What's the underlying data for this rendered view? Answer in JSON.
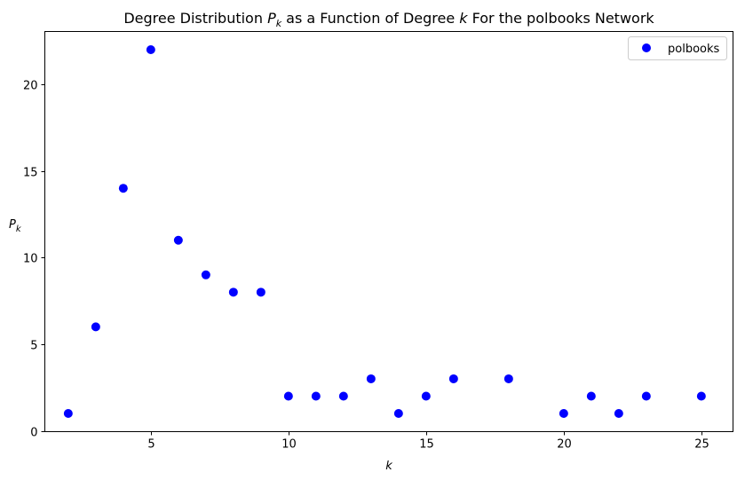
{
  "chart_data": {
    "type": "scatter",
    "title_main": "Degree Distribution ",
    "title_var": "P",
    "title_var_sub": "k",
    "title_mid": " as a Function of Degree ",
    "title_var2": "k",
    "title_end": " For the polbooks Network",
    "xlabel": "k",
    "ylabel": "P",
    "ylabel_sub": "k",
    "xlim": [
      1.15,
      26.15
    ],
    "ylim": [
      -0.05,
      23.05
    ],
    "xticks": [
      5,
      10,
      15,
      20,
      25
    ],
    "yticks": [
      0,
      5,
      10,
      15,
      20
    ],
    "legend_position": "top-right",
    "series": [
      {
        "name": "polbooks",
        "color": "#0000ff",
        "marker": "circle",
        "points": [
          {
            "x": 2,
            "y": 1
          },
          {
            "x": 3,
            "y": 6
          },
          {
            "x": 4,
            "y": 14
          },
          {
            "x": 5,
            "y": 22
          },
          {
            "x": 6,
            "y": 11
          },
          {
            "x": 7,
            "y": 9
          },
          {
            "x": 8,
            "y": 8
          },
          {
            "x": 9,
            "y": 8
          },
          {
            "x": 10,
            "y": 2
          },
          {
            "x": 11,
            "y": 2
          },
          {
            "x": 12,
            "y": 2
          },
          {
            "x": 13,
            "y": 3
          },
          {
            "x": 14,
            "y": 1
          },
          {
            "x": 15,
            "y": 2
          },
          {
            "x": 16,
            "y": 3
          },
          {
            "x": 18,
            "y": 3
          },
          {
            "x": 20,
            "y": 1
          },
          {
            "x": 21,
            "y": 2
          },
          {
            "x": 22,
            "y": 1
          },
          {
            "x": 23,
            "y": 2
          },
          {
            "x": 25,
            "y": 2
          }
        ]
      }
    ]
  }
}
